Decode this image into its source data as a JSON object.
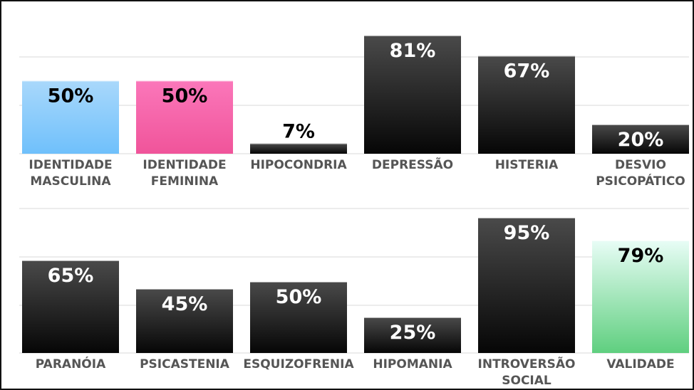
{
  "chart_data": [
    {
      "type": "bar",
      "title": "",
      "xlabel": "",
      "ylabel": "",
      "ylim": [
        0,
        100
      ],
      "grid": true,
      "value_suffix": "%",
      "categories": [
        [
          "IDENTIDADE",
          "MASCULINA"
        ],
        [
          "IDENTIDADE",
          "FEMININA"
        ],
        [
          "HIPOCONDRIA"
        ],
        [
          "DEPRESSÃO"
        ],
        [
          "HISTERIA"
        ],
        [
          "DESVIO",
          "PSICOPÁTICO"
        ]
      ],
      "values": [
        50,
        50,
        7,
        81,
        67,
        20
      ],
      "bar_styles": [
        "blue",
        "pink",
        "dark",
        "dark",
        "dark",
        "dark"
      ]
    },
    {
      "type": "bar",
      "title": "",
      "xlabel": "",
      "ylabel": "",
      "ylim": [
        0,
        100
      ],
      "grid": true,
      "value_suffix": "%",
      "categories": [
        [
          "PARANÓIA"
        ],
        [
          "PSICASTENIA"
        ],
        [
          "ESQUIZOFRENIA"
        ],
        [
          "HIPOMANIA"
        ],
        [
          "INTROVERSÃO",
          "SOCIAL"
        ],
        [
          "VALIDADE"
        ]
      ],
      "values": [
        65,
        45,
        50,
        25,
        95,
        79
      ],
      "bar_styles": [
        "dark",
        "dark",
        "dark",
        "dark",
        "dark",
        "green"
      ]
    }
  ],
  "colors": {
    "blue_top": "#a9d8fb",
    "blue_bottom": "#6fc0fb",
    "pink_top": "#fb77ba",
    "pink_bottom": "#f0549a",
    "dark_top": "#4a4a4a",
    "dark_bottom": "#060606",
    "green_top": "#e8fdf6",
    "green_bottom": "#5fcf7f",
    "label_light": "#ffffff",
    "label_dark": "#000000",
    "category_text": "#555555",
    "grid": "#e6e6e6"
  }
}
